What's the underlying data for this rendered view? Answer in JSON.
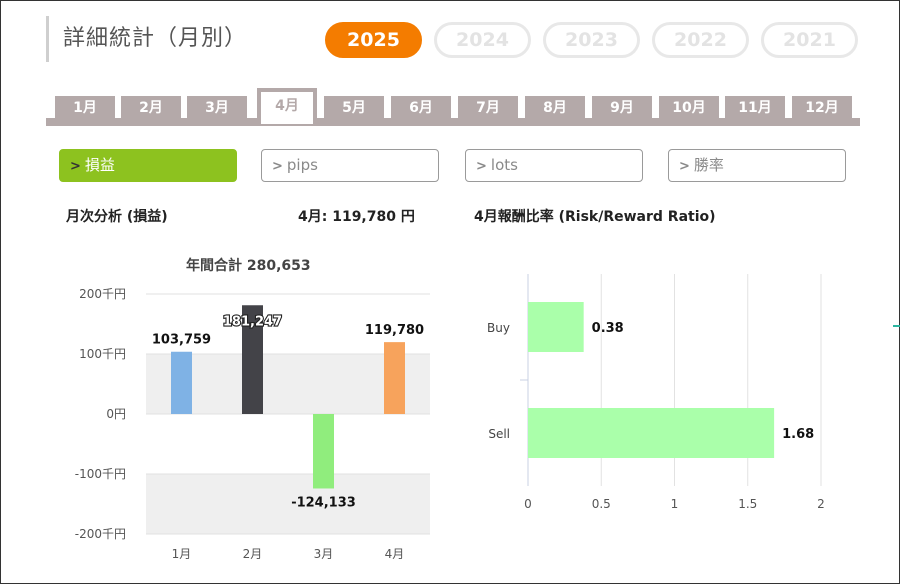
{
  "header": {
    "title": "詳細統計（月別）"
  },
  "years": [
    {
      "label": "2025",
      "active": true
    },
    {
      "label": "2024",
      "active": false
    },
    {
      "label": "2023",
      "active": false
    },
    {
      "label": "2022",
      "active": false
    },
    {
      "label": "2021",
      "active": false
    }
  ],
  "months": [
    "1月",
    "2月",
    "3月",
    "4月",
    "5月",
    "6月",
    "7月",
    "8月",
    "9月",
    "10月",
    "11月",
    "12月"
  ],
  "active_month_index": 3,
  "metrics": [
    {
      "label": "損益",
      "active": true
    },
    {
      "label": "pips",
      "active": false
    },
    {
      "label": "lots",
      "active": false
    },
    {
      "label": "勝率",
      "active": false
    }
  ],
  "left_panel": {
    "title": "月次分析 (損益)",
    "month_summary": "4月:  119,780 円",
    "annual_total": "年間合計 280,653"
  },
  "right_panel": {
    "title": "4月報酬比率 (Risk/Reward Ratio)"
  },
  "chart_data": [
    {
      "type": "bar",
      "categories": [
        "1月",
        "2月",
        "3月",
        "4月"
      ],
      "values": [
        103759,
        181247,
        -124133,
        119780
      ],
      "data_labels": [
        "103,759",
        "181,247",
        "-124,133",
        "119,780"
      ],
      "colors": [
        "#7fb2e5",
        "#434348",
        "#90ed7d",
        "#f7a35c"
      ],
      "ylim": [
        -200000,
        200000
      ],
      "yticks": [
        200000,
        100000,
        0,
        -100000,
        -200000
      ],
      "ytick_labels": [
        "200千円",
        "100千円",
        "0円",
        "-100千円",
        "-200千円"
      ],
      "grid": "alternating bands"
    },
    {
      "type": "bar",
      "orientation": "horizontal",
      "categories": [
        "Buy",
        "Sell"
      ],
      "values": [
        0.38,
        1.68
      ],
      "data_labels": [
        "0.38",
        "1.68"
      ],
      "color": "#aaffaa",
      "xlim": [
        0,
        2
      ],
      "xticks": [
        0,
        0.5,
        1,
        1.5,
        2
      ],
      "xtick_labels": [
        "0",
        "0.5",
        "1",
        "1.5",
        "2"
      ],
      "grid": true
    }
  ]
}
